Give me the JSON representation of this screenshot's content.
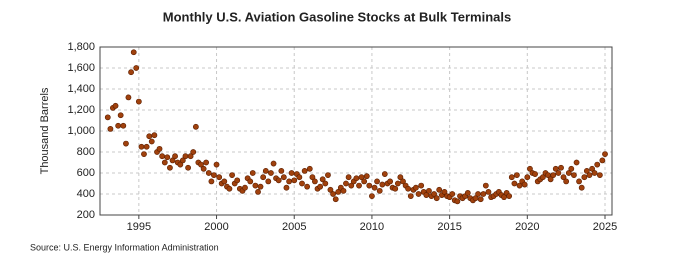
{
  "chart_data": {
    "type": "scatter",
    "title": "Monthly U.S. Aviation Gasoline Stocks at Bulk Terminals",
    "y_label": "Thousand Barrels",
    "source": "Source: U.S. Energy Information Administration",
    "xlim": [
      1992.5,
      2025.45
    ],
    "ylim": [
      200,
      1800
    ],
    "xticks": [
      1995,
      2000,
      2005,
      2010,
      2015,
      2020,
      2025
    ],
    "yticks": [
      200,
      400,
      600,
      800,
      {
        "value": 1000,
        "label": "1,000"
      },
      {
        "value": 1200,
        "label": "1,200"
      },
      {
        "value": 1400,
        "label": "1,400"
      },
      {
        "value": 1600,
        "label": "1,600"
      },
      {
        "value": 1800,
        "label": "1,800"
      }
    ],
    "grid": true,
    "series": [
      {
        "color": "#a0410d",
        "x": [
          1993.0,
          1993.17,
          1993.33,
          1993.5,
          1993.67,
          1993.83,
          1994.0,
          1994.17,
          1994.33,
          1994.5,
          1994.67,
          1994.83,
          1995.0,
          1995.17,
          1995.33,
          1995.5,
          1995.67,
          1995.83,
          1996.0,
          1996.17,
          1996.33,
          1996.5,
          1996.67,
          1996.83,
          1997.0,
          1997.17,
          1997.33,
          1997.5,
          1997.67,
          1997.83,
          1998.0,
          1998.17,
          1998.33,
          1998.5,
          1998.67,
          1998.83,
          1999.0,
          1999.17,
          1999.33,
          1999.5,
          1999.67,
          1999.83,
          2000.0,
          2000.17,
          2000.33,
          2000.5,
          2000.67,
          2000.83,
          2001.0,
          2001.17,
          2001.33,
          2001.5,
          2001.67,
          2001.83,
          2002.0,
          2002.17,
          2002.33,
          2002.5,
          2002.67,
          2002.83,
          2003.0,
          2003.17,
          2003.33,
          2003.5,
          2003.67,
          2003.83,
          2004.0,
          2004.17,
          2004.33,
          2004.5,
          2004.67,
          2004.83,
          2005.0,
          2005.17,
          2005.33,
          2005.5,
          2005.67,
          2005.83,
          2006.0,
          2006.17,
          2006.33,
          2006.5,
          2006.67,
          2006.83,
          2007.0,
          2007.17,
          2007.33,
          2007.5,
          2007.67,
          2007.83,
          2008.0,
          2008.17,
          2008.33,
          2008.5,
          2008.67,
          2008.83,
          2009.0,
          2009.17,
          2009.33,
          2009.5,
          2009.67,
          2009.83,
          2010.0,
          2010.17,
          2010.33,
          2010.5,
          2010.67,
          2010.83,
          2011.0,
          2011.17,
          2011.33,
          2011.5,
          2011.67,
          2011.83,
          2012.0,
          2012.17,
          2012.33,
          2012.5,
          2012.67,
          2012.83,
          2013.0,
          2013.17,
          2013.33,
          2013.5,
          2013.67,
          2013.83,
          2014.0,
          2014.17,
          2014.33,
          2014.5,
          2014.67,
          2014.83,
          2015.0,
          2015.17,
          2015.33,
          2015.5,
          2015.67,
          2015.83,
          2016.0,
          2016.17,
          2016.33,
          2016.5,
          2016.67,
          2016.83,
          2017.0,
          2017.17,
          2017.33,
          2017.5,
          2017.67,
          2017.83,
          2018.0,
          2018.17,
          2018.33,
          2018.5,
          2018.67,
          2018.83,
          2019.0,
          2019.17,
          2019.33,
          2019.5,
          2019.67,
          2019.83,
          2020.0,
          2020.17,
          2020.33,
          2020.5,
          2020.67,
          2020.83,
          2021.0,
          2021.17,
          2021.33,
          2021.5,
          2021.67,
          2021.83,
          2022.0,
          2022.17,
          2022.33,
          2022.5,
          2022.67,
          2022.83,
          2023.0,
          2023.17,
          2023.33,
          2023.5,
          2023.67,
          2023.83,
          2024.0,
          2024.17,
          2024.33,
          2024.5,
          2024.67,
          2024.83,
          2025.0
        ],
        "values": [
          1130,
          1020,
          1220,
          1240,
          1050,
          1150,
          1050,
          880,
          1320,
          1560,
          1750,
          1600,
          1280,
          850,
          780,
          850,
          950,
          900,
          960,
          800,
          830,
          760,
          700,
          750,
          650,
          720,
          760,
          700,
          680,
          720,
          760,
          650,
          760,
          800,
          1040,
          700,
          680,
          640,
          700,
          600,
          520,
          580,
          680,
          560,
          500,
          520,
          470,
          450,
          580,
          500,
          530,
          450,
          430,
          460,
          550,
          520,
          600,
          480,
          420,
          470,
          560,
          620,
          520,
          600,
          690,
          550,
          530,
          620,
          560,
          460,
          520,
          600,
          530,
          590,
          560,
          500,
          620,
          470,
          640,
          560,
          520,
          450,
          470,
          540,
          500,
          580,
          440,
          400,
          350,
          420,
          460,
          430,
          500,
          560,
          480,
          520,
          550,
          480,
          560,
          520,
          570,
          480,
          380,
          460,
          520,
          430,
          490,
          590,
          500,
          520,
          460,
          450,
          500,
          560,
          520,
          480,
          450,
          380,
          440,
          460,
          400,
          480,
          420,
          390,
          430,
          380,
          400,
          360,
          440,
          390,
          420,
          380,
          370,
          400,
          340,
          330,
          380,
          360,
          380,
          410,
          360,
          340,
          360,
          400,
          350,
          400,
          480,
          420,
          370,
          380,
          400,
          420,
          390,
          370,
          410,
          380,
          560,
          500,
          580,
          480,
          520,
          490,
          560,
          640,
          600,
          590,
          520,
          540,
          560,
          600,
          580,
          540,
          580,
          640,
          600,
          650,
          560,
          520,
          600,
          640,
          580,
          700,
          520,
          460,
          560,
          620,
          580,
          640,
          600,
          680,
          580,
          720,
          780
        ]
      }
    ]
  }
}
